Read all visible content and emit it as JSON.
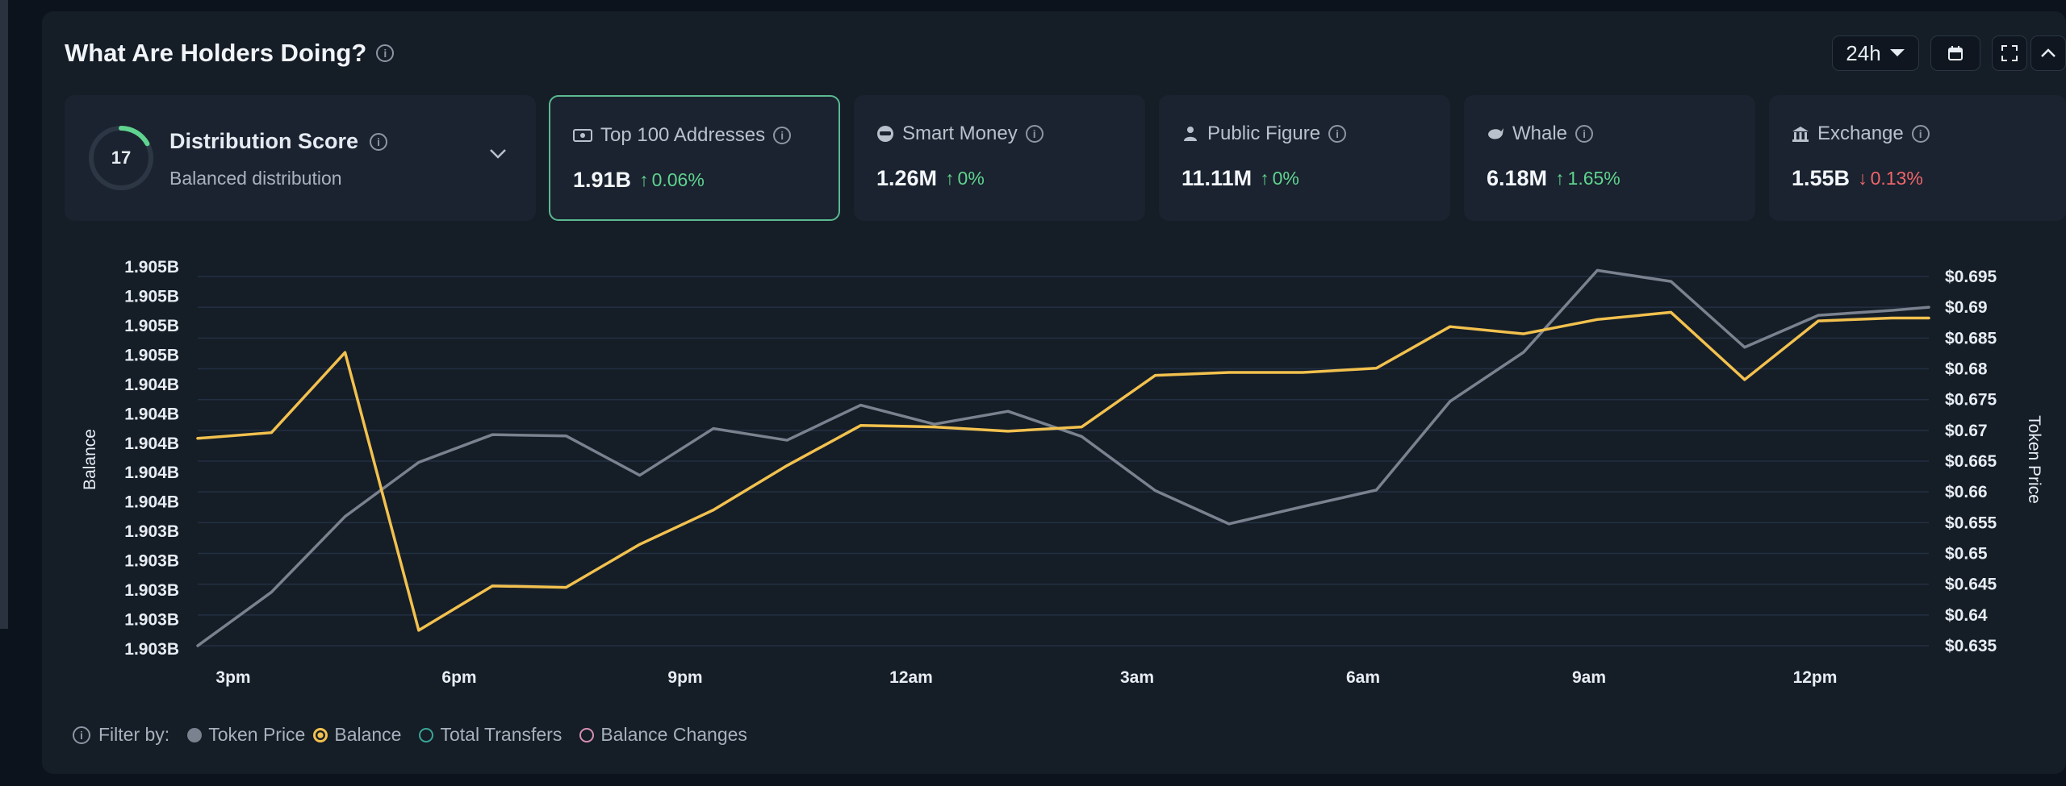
{
  "header": {
    "title": "What Are Holders Doing?",
    "range_label": "24h"
  },
  "distribution": {
    "score": "17",
    "score_fraction": 0.17,
    "title": "Distribution Score",
    "subtitle": "Balanced distribution"
  },
  "cards": [
    {
      "label": "Top 100 Addresses",
      "value": "1.91B",
      "change": "0.06%",
      "direction": "up",
      "icon": "wallet-icon",
      "active": true
    },
    {
      "label": "Smart Money",
      "value": "1.26M",
      "change": "0%",
      "direction": "up",
      "icon": "smart-money-icon",
      "active": false
    },
    {
      "label": "Public Figure",
      "value": "11.11M",
      "change": "0%",
      "direction": "up",
      "icon": "public-figure-icon",
      "active": false
    },
    {
      "label": "Whale",
      "value": "6.18M",
      "change": "1.65%",
      "direction": "up",
      "icon": "whale-icon",
      "active": false
    },
    {
      "label": "Exchange",
      "value": "1.55B",
      "change": "0.13%",
      "direction": "down",
      "icon": "exchange-icon",
      "active": false
    }
  ],
  "colors": {
    "up": "#5fd38f",
    "down": "#f0646a",
    "balance": "#f2c14e",
    "token_price": "#7a828f",
    "active_border": "#5bb991",
    "ring": "#5fd38f"
  },
  "chart_data": {
    "type": "line",
    "ylabel_left": "Balance",
    "ylabel_right": "Token Price",
    "left_ticks": [
      "1.905B",
      "1.905B",
      "1.905B",
      "1.905B",
      "1.904B",
      "1.904B",
      "1.904B",
      "1.904B",
      "1.904B",
      "1.903B",
      "1.903B",
      "1.903B",
      "1.903B",
      "1.903B"
    ],
    "right_ticks": [
      "$0.695",
      "$0.69",
      "$0.685",
      "$0.68",
      "$0.675",
      "$0.67",
      "$0.665",
      "$0.66",
      "$0.655",
      "$0.65",
      "$0.645",
      "$0.64",
      "$0.635"
    ],
    "right_ylim": [
      0.635,
      0.695
    ],
    "x_ticks": [
      "3pm",
      "6pm",
      "9pm",
      "12am",
      "3am",
      "6am",
      "9am",
      "12pm"
    ],
    "x_range": [
      0,
      23.5
    ],
    "series": [
      {
        "name": "Balance",
        "axis": "left",
        "x": [
          0,
          1,
          2,
          3,
          4,
          5,
          6,
          7,
          8,
          9,
          10,
          11,
          12,
          13,
          14,
          15,
          16,
          17,
          18,
          19,
          20,
          21,
          22,
          23,
          23.5
        ],
        "values": [
          1.90427,
          1.90431,
          1.90487,
          1.90293,
          1.90324,
          1.90323,
          1.90353,
          1.90377,
          1.90408,
          1.90436,
          1.90435,
          1.90432,
          1.90435,
          1.90471,
          1.90473,
          1.90473,
          1.90476,
          1.90505,
          1.905,
          1.9051,
          1.90515,
          1.90468,
          1.90509,
          1.90511,
          1.90511
        ]
      },
      {
        "name": "Token Price",
        "axis": "right",
        "x": [
          0,
          1,
          2,
          3,
          4,
          5,
          6,
          7,
          8,
          9,
          10,
          11,
          12,
          13,
          14,
          15,
          16,
          17,
          18,
          19,
          20,
          21,
          22,
          23,
          23.5
        ],
        "values": [
          0.635,
          0.6437,
          0.656,
          0.6648,
          0.6693,
          0.6691,
          0.6627,
          0.6703,
          0.6684,
          0.6741,
          0.671,
          0.6731,
          0.669,
          0.6602,
          0.6548,
          0.6576,
          0.6603,
          0.6747,
          0.6827,
          0.696,
          0.6942,
          0.6835,
          0.6887,
          0.6895,
          0.69
        ]
      }
    ],
    "left_ylim": [
      1.9028,
      1.9054
    ]
  },
  "legend": {
    "filter_label": "Filter by:",
    "items": [
      {
        "label": "Token Price",
        "style": "filled-gray"
      },
      {
        "label": "Balance",
        "style": "yellow-ring"
      },
      {
        "label": "Total Transfers",
        "style": "teal-outline"
      },
      {
        "label": "Balance Changes",
        "style": "pink-outline"
      }
    ]
  }
}
